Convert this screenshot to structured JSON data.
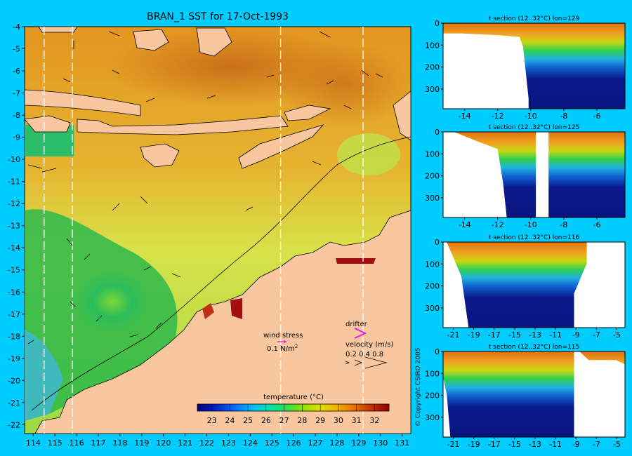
{
  "main_map": {
    "title": "BRAN_1 SST for 17-Oct-1993",
    "x_ticks": [
      114,
      115,
      116,
      117,
      118,
      119,
      120,
      121,
      122,
      123,
      124,
      125,
      126,
      127,
      128,
      129,
      130,
      131
    ],
    "y_ticks": [
      -4,
      -5,
      -6,
      -7,
      -8,
      -9,
      -10,
      -11,
      -12,
      -13,
      -14,
      -15,
      -16,
      -17,
      -18,
      -19,
      -20,
      -21,
      -22
    ],
    "xlim": [
      113.6,
      131.4
    ],
    "ylim": [
      -22.4,
      -4
    ],
    "section_lons": [
      114.5,
      115.8,
      125.4,
      129.2
    ],
    "wind_stress_label": "wind stress",
    "wind_stress_value": "0.1 N/m",
    "wind_stress_exp": "2",
    "drifter_label": "drifter",
    "velocity_label": "velocity (m/s)",
    "velocity_values": "0.2 0.4 0.8",
    "colorbar": {
      "label": "temperature (°C)",
      "ticks": [
        23,
        24,
        25,
        26,
        27,
        28,
        29,
        30,
        31,
        32
      ],
      "range": [
        22.2,
        32.8
      ],
      "colors": [
        "#000080",
        "#0020c0",
        "#0060ff",
        "#00b0ff",
        "#00e0c0",
        "#20e060",
        "#90e000",
        "#e0e000",
        "#f0b000",
        "#e07000",
        "#c03000",
        "#900000"
      ]
    }
  },
  "sections": [
    {
      "title": "t section (12..32°C) lon=129",
      "x_ticks": [
        -14,
        -12,
        -10,
        -8,
        -6
      ],
      "y_ticks": [
        0,
        100,
        200,
        300
      ],
      "xlim": [
        -15.3,
        -4.3
      ],
      "ylim": [
        0,
        390
      ]
    },
    {
      "title": "t section (12..32°C) lon=125",
      "x_ticks": [
        -14,
        -12,
        -10,
        -8,
        -6
      ],
      "y_ticks": [
        0,
        100,
        200,
        300
      ],
      "xlim": [
        -15.3,
        -4.3
      ],
      "ylim": [
        0,
        390
      ]
    },
    {
      "title": "t section (12..32°C) lon=116",
      "x_ticks": [
        -21,
        -19,
        -17,
        -15,
        -13,
        -11,
        -9,
        -7,
        -5
      ],
      "y_ticks": [
        0,
        100,
        200,
        300
      ],
      "xlim": [
        -22,
        -4.2
      ],
      "ylim": [
        0,
        390
      ]
    },
    {
      "title": "t section (12..32°C) lon=115",
      "x_ticks": [
        -21,
        -19,
        -17,
        -15,
        -13,
        -11,
        -9,
        -7,
        -5
      ],
      "y_ticks": [
        0,
        100,
        200,
        300
      ],
      "xlim": [
        -22,
        -4.2
      ],
      "ylim": [
        0,
        390
      ]
    }
  ],
  "copyright": "© Copyright CSIRO 2005",
  "colors": {
    "background": "#00ccff",
    "land": "#f9c79f",
    "warm": "#d9781f",
    "cool": "#2db84a",
    "deep": "#0a1a8c"
  }
}
